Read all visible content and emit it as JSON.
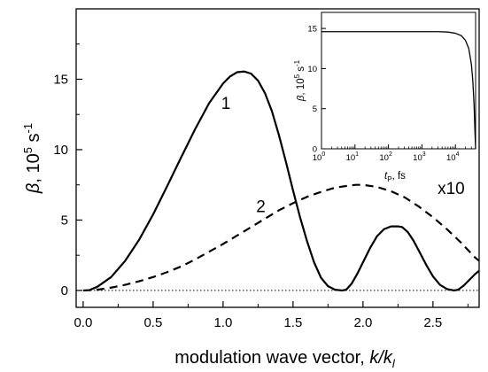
{
  "chart_data": [
    {
      "type": "line",
      "title": "",
      "xlabel": "modulation wave vector, k/k",
      "xlabel_sub": "l",
      "ylabel": "β, 10",
      "ylabel_sup": "5",
      "ylabel_unit": " s",
      "ylabel_unit_sup": "-1",
      "xlim": [
        -0.05,
        2.83
      ],
      "ylim": [
        -1.2,
        20
      ],
      "xticks": [
        0.0,
        0.5,
        1.0,
        1.5,
        2.0,
        2.5
      ],
      "xtick_labels": [
        "0.0",
        "0.5",
        "1.0",
        "1.5",
        "2.0",
        "2.5"
      ],
      "yticks": [
        0,
        5,
        10,
        15
      ],
      "ytick_labels": [
        "0",
        "5",
        "10",
        "15"
      ],
      "grid": false,
      "legend": "none",
      "series": [
        {
          "name": "1",
          "style": "solid",
          "x": [
            0.05,
            0.1,
            0.2,
            0.3,
            0.4,
            0.5,
            0.6,
            0.7,
            0.8,
            0.9,
            1.0,
            1.05,
            1.1,
            1.15,
            1.2,
            1.25,
            1.3,
            1.35,
            1.4,
            1.45,
            1.5,
            1.55,
            1.6,
            1.65,
            1.7,
            1.75,
            1.8,
            1.85,
            1.88,
            1.92,
            1.96,
            2.0,
            2.05,
            2.1,
            2.15,
            2.2,
            2.25,
            2.28,
            2.32,
            2.36,
            2.4,
            2.45,
            2.5,
            2.55,
            2.6,
            2.65,
            2.68,
            2.72,
            2.76,
            2.8,
            2.83
          ],
          "values": [
            0.05,
            0.25,
            0.95,
            2.1,
            3.6,
            5.4,
            7.4,
            9.45,
            11.45,
            13.3,
            14.7,
            15.2,
            15.5,
            15.55,
            15.4,
            14.9,
            14.0,
            12.7,
            11.0,
            9.1,
            7.1,
            5.2,
            3.5,
            2.0,
            0.9,
            0.3,
            0.05,
            0.0,
            0.05,
            0.5,
            1.2,
            2.0,
            3.0,
            3.85,
            4.35,
            4.55,
            4.55,
            4.5,
            4.15,
            3.55,
            2.8,
            1.85,
            1.0,
            0.4,
            0.1,
            0.0,
            0.05,
            0.35,
            0.75,
            1.15,
            1.4
          ]
        },
        {
          "name": "2",
          "style": "dashed",
          "x": [
            0.0,
            0.1,
            0.2,
            0.3,
            0.4,
            0.5,
            0.6,
            0.7,
            0.8,
            0.9,
            1.0,
            1.1,
            1.2,
            1.3,
            1.4,
            1.5,
            1.6,
            1.7,
            1.8,
            1.9,
            1.95,
            2.0,
            2.1,
            2.2,
            2.3,
            2.4,
            2.5,
            2.6,
            2.7,
            2.8,
            2.83
          ],
          "values": [
            0.0,
            0.05,
            0.2,
            0.4,
            0.65,
            0.95,
            1.3,
            1.7,
            2.2,
            2.75,
            3.3,
            3.9,
            4.5,
            5.1,
            5.7,
            6.2,
            6.65,
            7.0,
            7.3,
            7.45,
            7.5,
            7.5,
            7.35,
            7.05,
            6.6,
            5.95,
            5.2,
            4.35,
            3.4,
            2.35,
            2.1
          ]
        },
        {
          "name": "",
          "style": "dotted",
          "x": [
            -0.05,
            2.83
          ],
          "values": [
            0,
            0
          ]
        }
      ],
      "annotations": [
        {
          "text": "1",
          "x": 1.02,
          "y": 12.9
        },
        {
          "text": "2",
          "x": 1.27,
          "y": 5.55
        },
        {
          "text": "x10",
          "x": 2.63,
          "y": 6.85
        }
      ]
    },
    {
      "type": "line",
      "title": "",
      "xlabel": "t",
      "xlabel_sub": "P",
      "xlabel_unit": ", fs",
      "ylabel": "β, 10",
      "ylabel_sup": "5",
      "ylabel_unit": " s",
      "ylabel_unit_sup": "-1",
      "xscale": "log",
      "xlim": [
        1,
        40000
      ],
      "ylim": [
        0,
        17
      ],
      "xticks": [
        1,
        10,
        100,
        1000,
        10000
      ],
      "xtick_labels": [
        {
          "base": "10",
          "exp": "0"
        },
        {
          "base": "10",
          "exp": "1"
        },
        {
          "base": "10",
          "exp": "2"
        },
        {
          "base": "10",
          "exp": "3"
        },
        {
          "base": "10",
          "exp": "4"
        }
      ],
      "yticks": [
        0,
        5,
        10,
        15
      ],
      "ytick_labels": [
        "0",
        "5",
        "10",
        "15"
      ],
      "grid": false,
      "legend": "none",
      "series": [
        {
          "name": "",
          "style": "solid",
          "x": [
            1,
            10,
            100,
            1000,
            3000,
            6000,
            10000,
            15000,
            20000,
            25000,
            30000,
            33000,
            36000,
            38000,
            40000
          ],
          "values": [
            14.6,
            14.6,
            14.6,
            14.6,
            14.6,
            14.55,
            14.4,
            14.1,
            13.5,
            12.5,
            10.5,
            8.5,
            5.5,
            2.5,
            0.0
          ]
        }
      ]
    }
  ]
}
